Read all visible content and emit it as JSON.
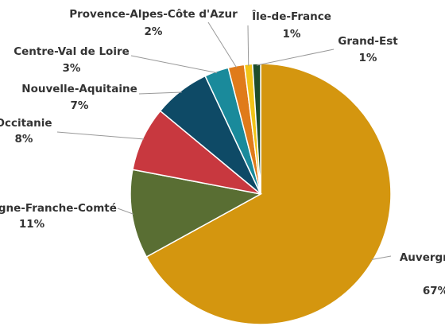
{
  "chart_data": {
    "type": "pie",
    "categories": [
      "Auvergne-Rhône-Alpes",
      "Bourgogne-Franche-Comté",
      "Occitanie",
      "Nouvelle-Aquitaine",
      "Centre-Val de Loire",
      "Provence-Alpes-Côte d'Azur",
      "Île-de-France",
      "Grand-Est"
    ],
    "values": [
      67,
      11,
      8,
      7,
      3,
      2,
      1,
      1
    ],
    "value_labels": [
      "67%",
      "11%",
      "8%",
      "7%",
      "3%",
      "2%",
      "1%",
      "1%"
    ],
    "colors": [
      "#d4960f",
      "#596e33",
      "#c8383f",
      "#0e4a66",
      "#1a8a9b",
      "#e07b1a",
      "#f2c418",
      "#1e4d2b"
    ]
  }
}
